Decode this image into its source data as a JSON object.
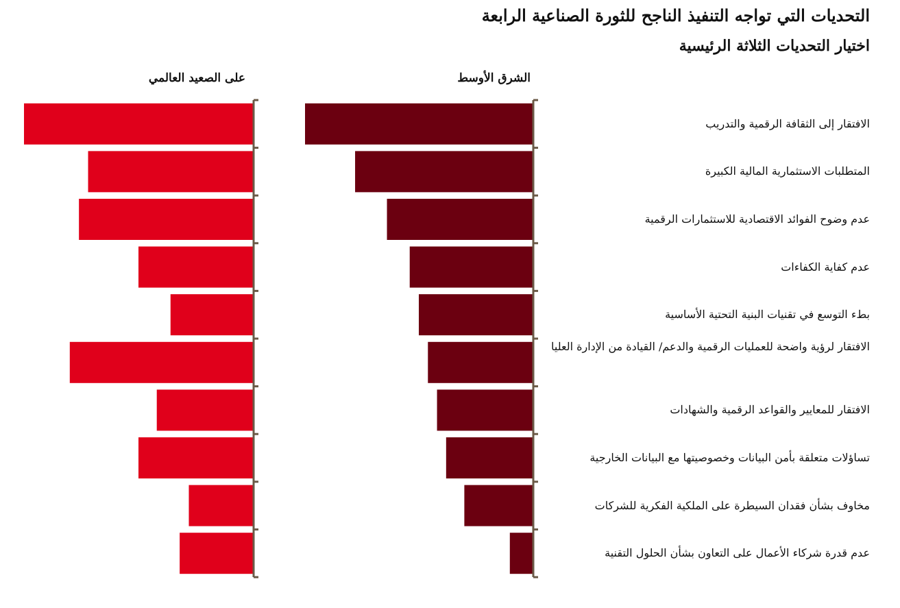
{
  "title": "التحديات التي تواجه التنفيذ الناجح للثورة الصناعية الرابعة",
  "subtitle": "اختيار التحديات الثلاثة الرئيسية",
  "colors": {
    "middle_east": "#6b0010",
    "global": "#e0001b",
    "axis": "#6b5a47"
  },
  "chart_data": {
    "type": "bar",
    "orientation": "horizontal",
    "categories": [
      "الافتقار إلى الثقافة الرقمية والتدريب",
      "المتطلبات الاستثمارية المالية الكبيرة",
      "عدم وضوح الفوائد الاقتصادية للاستثمارات الرقمية",
      "عدم كفاية الكفاءات",
      "بطء التوسع في تقنيات البنية التحتية الأساسية",
      "الافتقار لرؤية واضحة للعمليات الرقمية والدعم/ القيادة من الإدارة العليا",
      "الافتقار للمعايير والقواعد الرقمية والشهادات",
      "تساؤلات متعلقة بأمن البيانات وخصوصيتها مع البيانات الخارجية",
      "مخاوف بشأن فقدان السيطرة على الملكية الفكرية للشركات",
      "عدم قدرة شركاء الأعمال على التعاون بشأن الحلول التقنية"
    ],
    "series": [
      {
        "name": "الشرق الأوسط",
        "values": [
          50,
          39,
          32,
          27,
          25,
          23,
          21,
          19,
          15,
          5
        ]
      },
      {
        "name": "على الصعيد العالمي",
        "values": [
          50,
          36,
          38,
          25,
          18,
          40,
          21,
          25,
          14,
          16
        ]
      }
    ],
    "xlim": [
      0,
      50
    ],
    "grid": false,
    "legend": "none"
  }
}
